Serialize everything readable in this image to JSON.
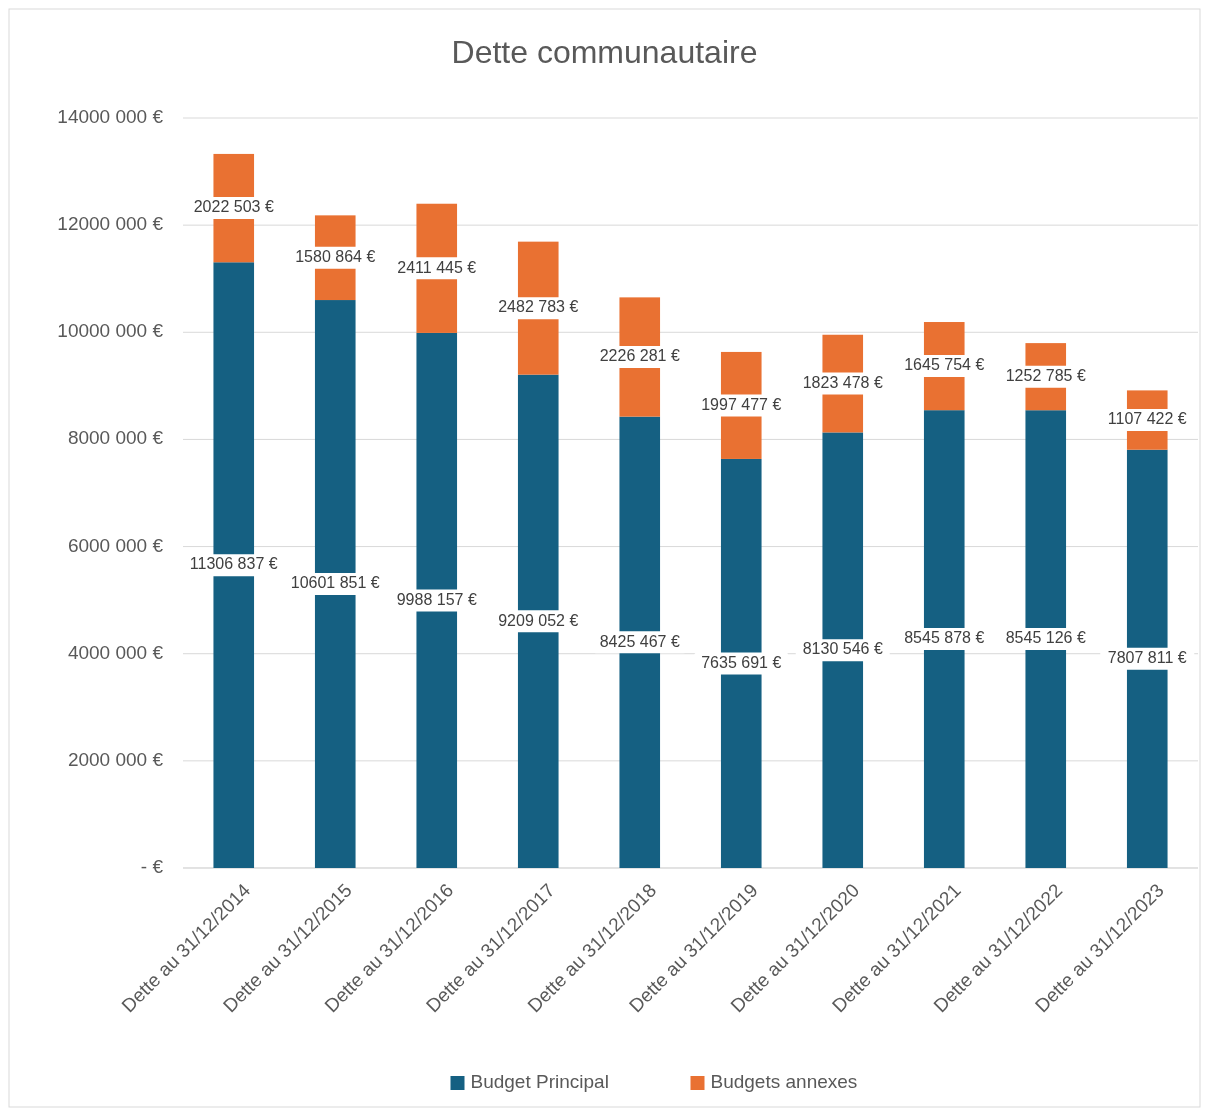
{
  "chart_data": {
    "type": "bar",
    "title": "Dette communautaire",
    "stacked": true,
    "categories": [
      "Dette au 31/12/2014",
      "Dette au 31/12/2015",
      "Dette au 31/12/2016",
      "Dette au 31/12/2017",
      "Dette au 31/12/2018",
      "Dette au 31/12/2019",
      "Dette au 31/12/2020",
      "Dette au 31/12/2021",
      "Dette au 31/12/2022",
      "Dette au 31/12/2023"
    ],
    "series": [
      {
        "name": "Budget Principal",
        "color": "#156082",
        "values": [
          11306837,
          10601851,
          9988157,
          9209052,
          8425467,
          7635691,
          8130546,
          8545878,
          8545126,
          7807811
        ],
        "value_labels": [
          "11306 837 €",
          "10601 851 €",
          "9988 157 €",
          "9209 052 €",
          "8425 467 €",
          "7635 691 €",
          "8130 546 €",
          "8545 878 €",
          "8545 126 €",
          "7807 811 €"
        ]
      },
      {
        "name": "Budgets annexes",
        "color": "#e97132",
        "values": [
          2022503,
          1580864,
          2411445,
          2482783,
          2226281,
          1997477,
          1823478,
          1645754,
          1252785,
          1107422
        ],
        "value_labels": [
          "2022 503 €",
          "1580 864 €",
          "2411 445 €",
          "2482 783 €",
          "2226 281 €",
          "1997 477 €",
          "1823 478 €",
          "1645 754 €",
          "1252 785 €",
          "1107 422 €"
        ]
      }
    ],
    "ylim": [
      0,
      14000000
    ],
    "yticks": [
      {
        "value": 0,
        "label": "-  €"
      },
      {
        "value": 2000000,
        "label": "2000 000 €"
      },
      {
        "value": 4000000,
        "label": "4000 000 €"
      },
      {
        "value": 6000000,
        "label": "6000 000 €"
      },
      {
        "value": 8000000,
        "label": "8000 000 €"
      },
      {
        "value": 10000000,
        "label": "10000 000 €"
      },
      {
        "value": 12000000,
        "label": "12000 000 €"
      },
      {
        "value": 14000000,
        "label": "14000 000 €"
      }
    ],
    "grid": "y",
    "legend": "bottom"
  }
}
